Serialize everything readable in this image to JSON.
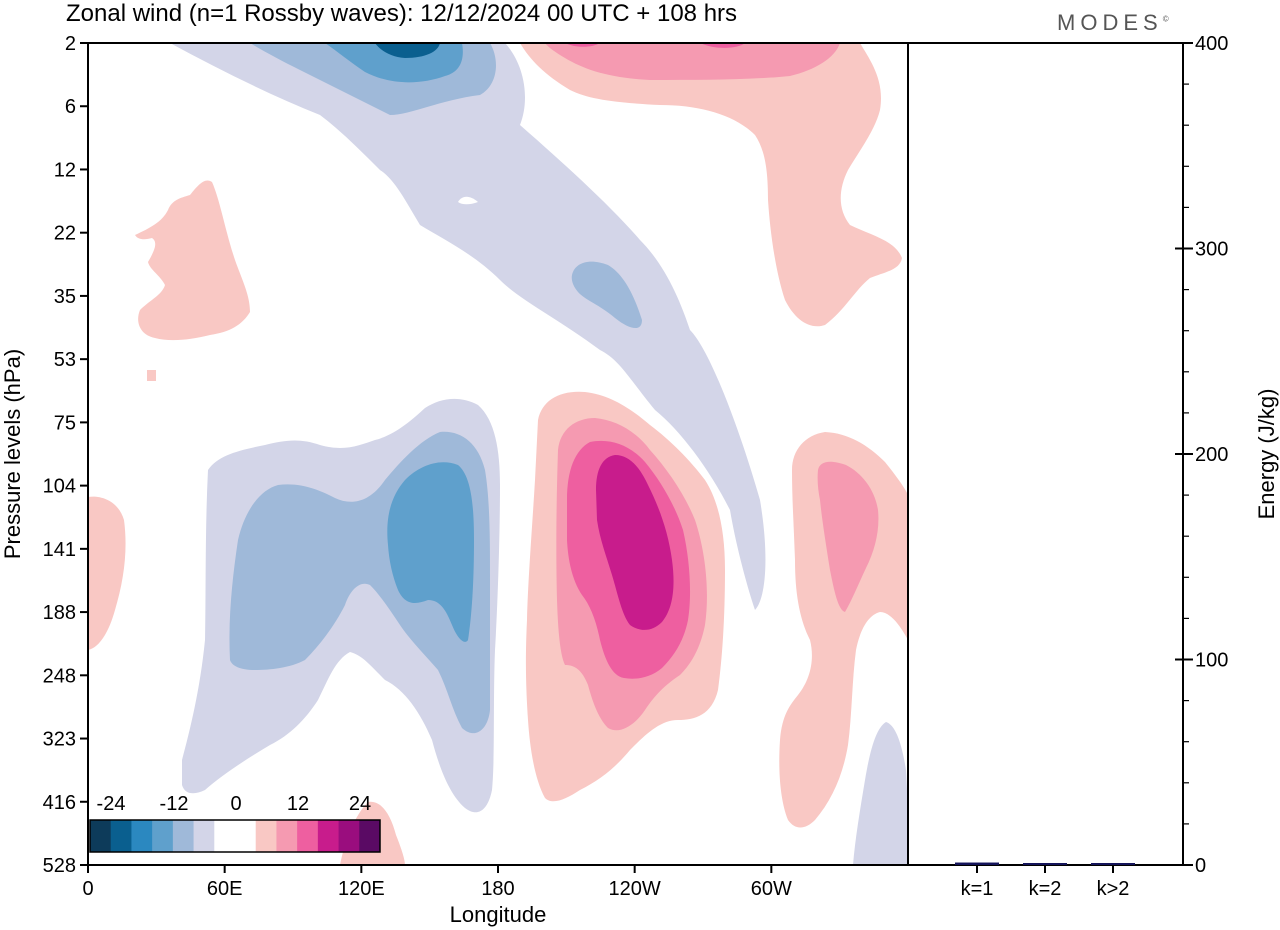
{
  "header": {
    "title": "Zonal wind (n=1 Rossby waves):  12/12/2024  00 UTC  + 108 hrs",
    "brand": "MODES",
    "brand_mark": "©"
  },
  "colors": {
    "neg": [
      "#0d3b5a",
      "#0a5f8f",
      "#2b88c0",
      "#5fa0cc",
      "#9fb9d9",
      "#d3d5e8"
    ],
    "zero": "#ffffff",
    "pos": [
      "#f9c8c4",
      "#f59ab1",
      "#ee5fa0",
      "#c81c8c",
      "#9a0d7e",
      "#5a0a64"
    ],
    "frame": "#000000",
    "energy_bar": "#14145a"
  },
  "chart_data": [
    {
      "type": "heatmap",
      "title": "Zonal wind (n=1 Rossby waves):  12/12/2024  00 UTC  + 108 hrs",
      "xlabel": "Longitude",
      "ylabel": "Pressure levels (hPa)",
      "x_ticks": [
        "0",
        "60E",
        "120E",
        "180",
        "120W",
        "60W"
      ],
      "y_ticks": [
        "2",
        "6",
        "12",
        "22",
        "35",
        "53",
        "75",
        "104",
        "141",
        "188",
        "248",
        "323",
        "416",
        "528"
      ],
      "colorbar": {
        "tick_labels": [
          "-24",
          "-12",
          "0",
          "12",
          "24"
        ],
        "levels": [
          -24,
          -20,
          -16,
          -12,
          -8,
          -4,
          0,
          4,
          8,
          12,
          16,
          20,
          24
        ]
      }
    },
    {
      "type": "bar",
      "ylabel": "Energy (J/kg)",
      "categories": [
        "k=1",
        "k=2",
        "k>2"
      ],
      "values": [
        1.2,
        0.3,
        0.8
      ],
      "ylim": [
        0,
        400
      ],
      "y_ticks": [
        "0",
        "100",
        "200",
        "300",
        "400"
      ]
    }
  ]
}
